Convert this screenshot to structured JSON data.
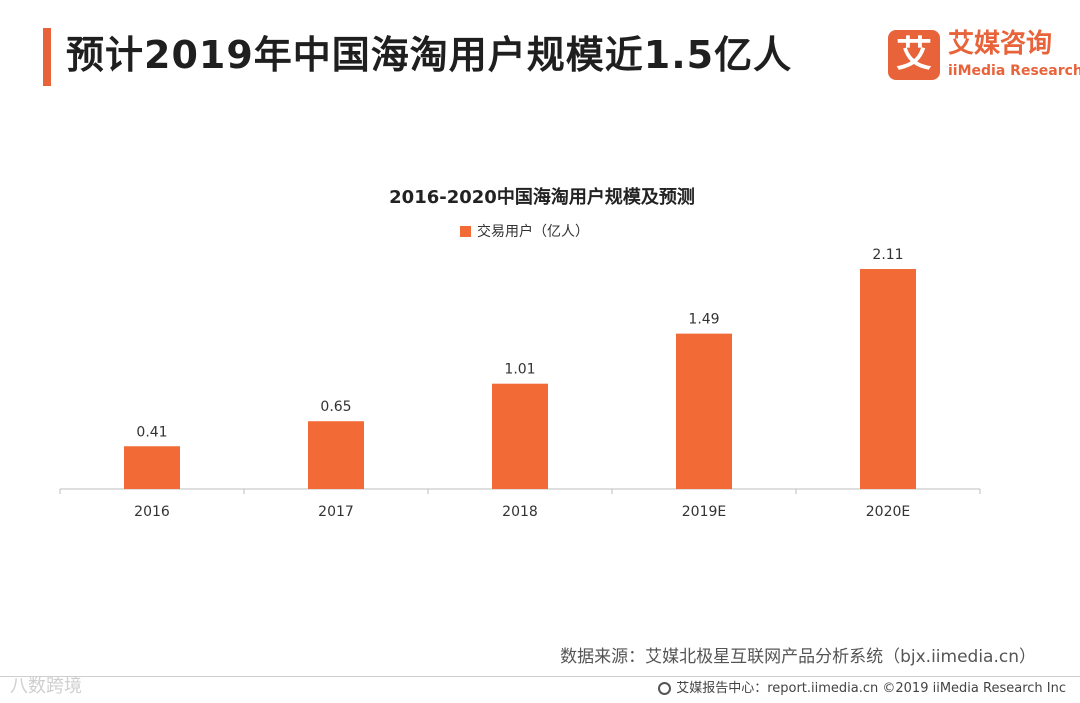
{
  "header": {
    "title": "预计2019年中国海淘用户规模近1.5亿人",
    "logo_mark": "艾",
    "logo_cn": "艾媒咨询",
    "logo_en": "iiMedia Research"
  },
  "colors": {
    "accent": "#e8633a",
    "bar": "#f26a35"
  },
  "chart_data": {
    "type": "bar",
    "title": "2016-2020中国海淘用户规模及预测",
    "legend": [
      "交易用户（亿人）"
    ],
    "legend_position": "top",
    "categories": [
      "2016",
      "2017",
      "2018",
      "2019E",
      "2020E"
    ],
    "series": [
      {
        "name": "交易用户（亿人）",
        "values": [
          0.41,
          0.65,
          1.01,
          1.49,
          2.11
        ]
      }
    ],
    "data_labels": [
      "0.41",
      "0.65",
      "1.01",
      "1.49",
      "2.11"
    ],
    "xlabel": "",
    "ylabel": "",
    "ylim": [
      0,
      2.11
    ],
    "grid": false
  },
  "source": "数据来源：艾媒北极星互联网产品分析系统（bjx.iimedia.cn）",
  "footer": {
    "watermark": "八数跨境",
    "right_text": "艾媒报告中心：report.iimedia.cn  ©2019  iiMedia Research  Inc"
  }
}
